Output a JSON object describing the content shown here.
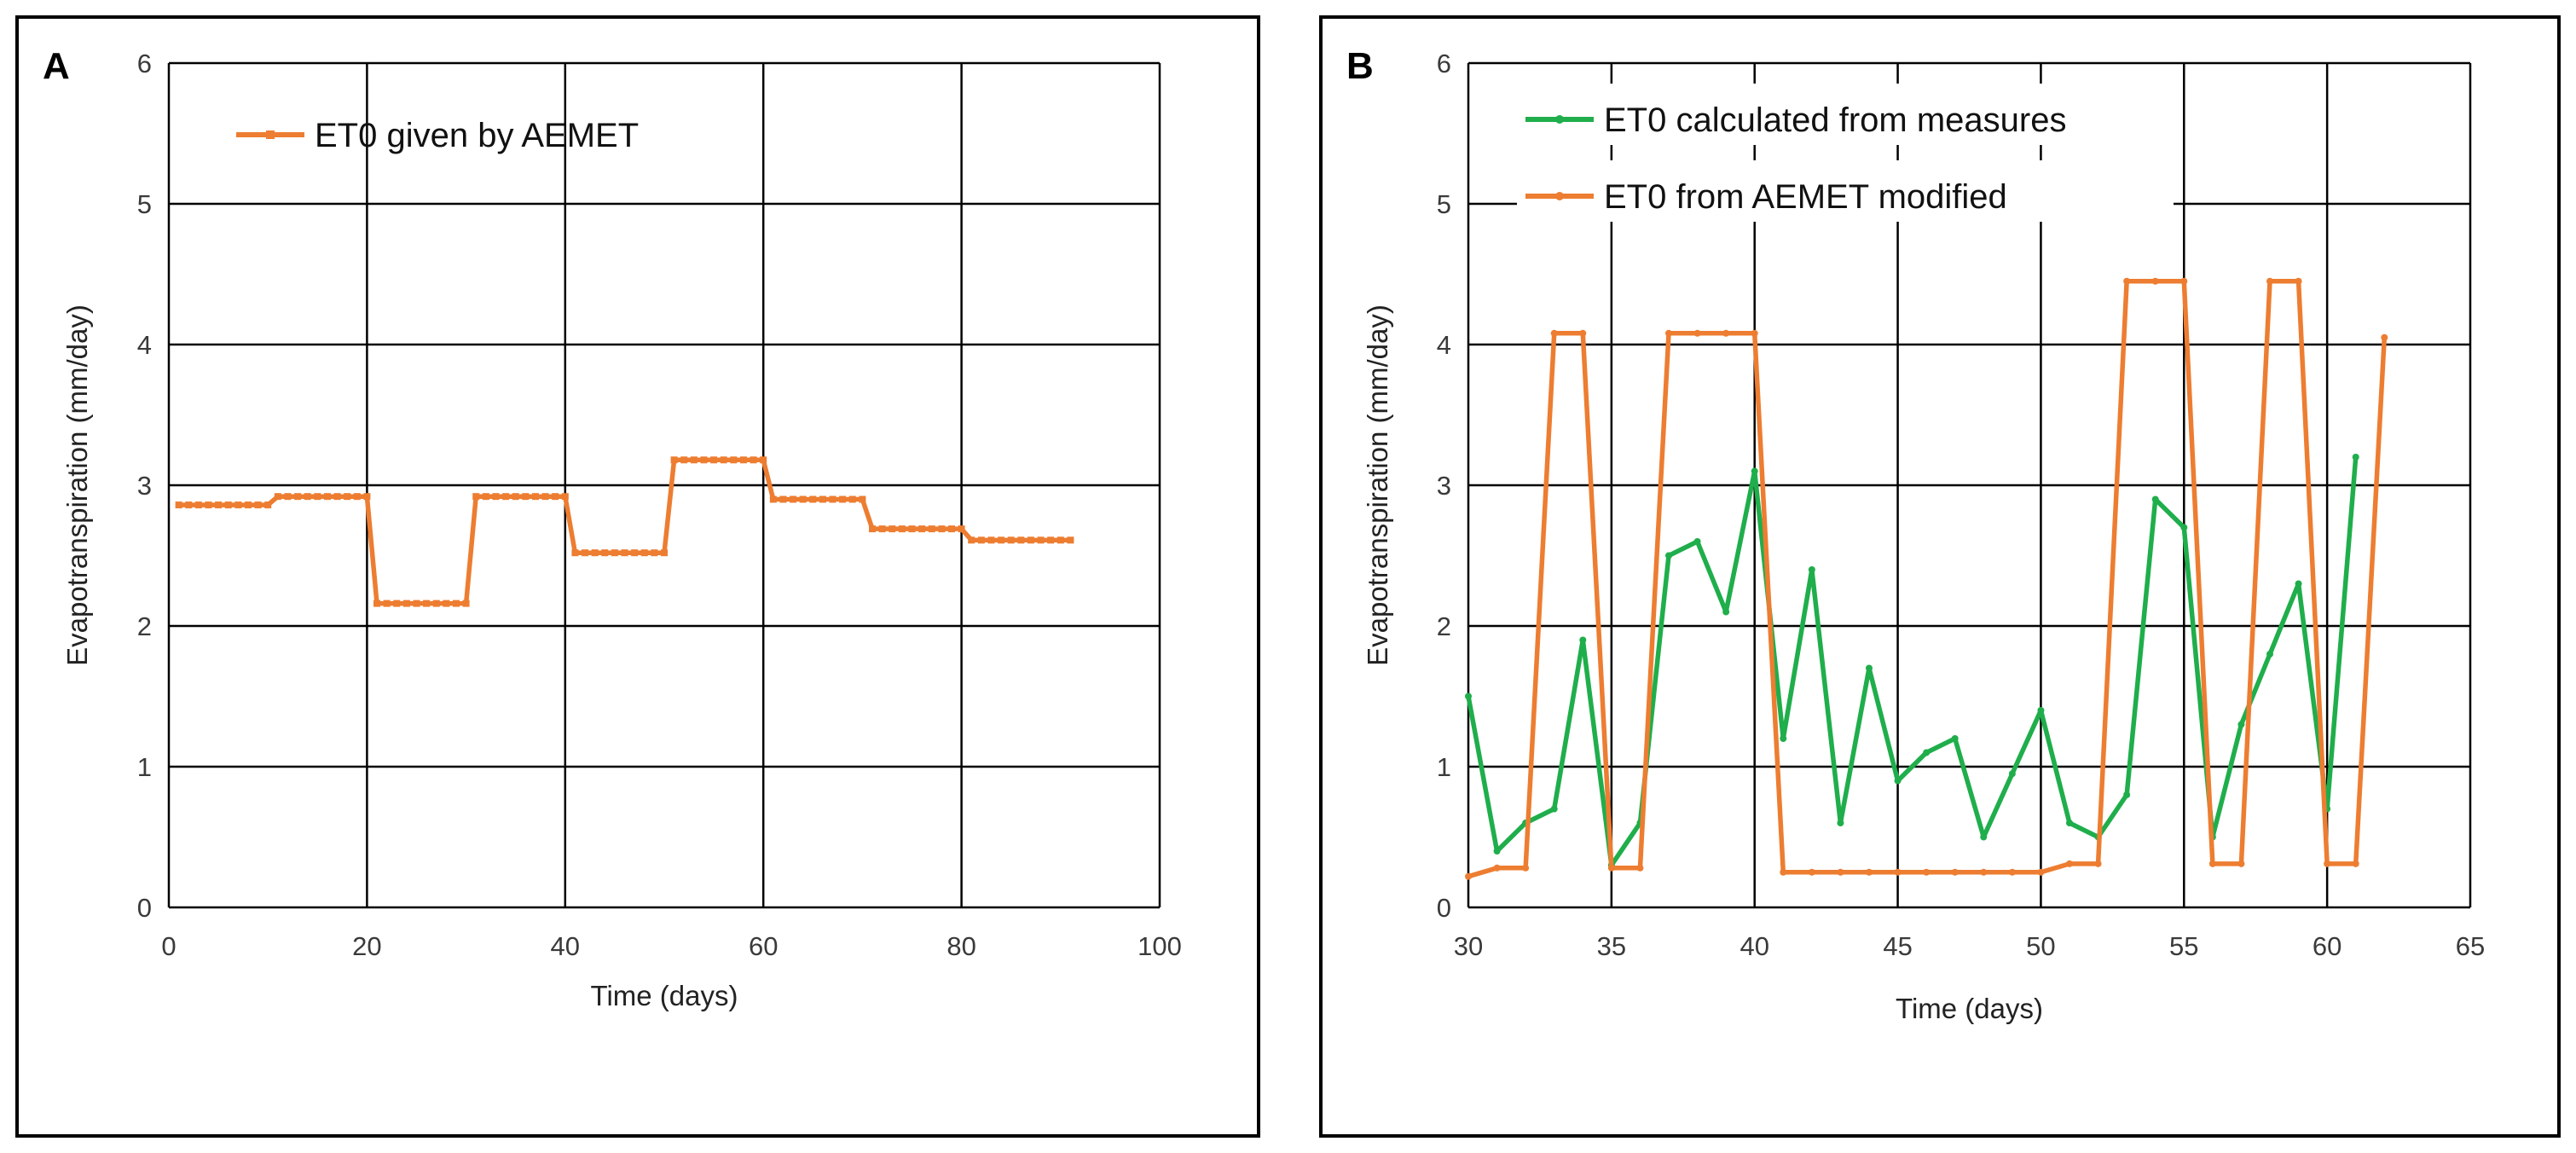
{
  "chart_data": [
    {
      "panel_label": "A",
      "type": "line",
      "xlabel": "Time (days)",
      "ylabel": "Evapotranspiration (mm/day)",
      "xlim": [
        0,
        100
      ],
      "ylim": [
        0,
        6
      ],
      "xticks": [
        0,
        20,
        40,
        60,
        80,
        100
      ],
      "yticks": [
        0,
        1,
        2,
        3,
        4,
        5,
        6
      ],
      "grid": true,
      "legend_position": "top-left",
      "colors": {
        "orange": "#ED7D31"
      },
      "series": [
        {
          "name": "ET0 given by AEMET",
          "color": "#ED7D31",
          "marker": "square",
          "x": [
            1,
            2,
            3,
            4,
            5,
            6,
            7,
            8,
            9,
            10,
            11,
            12,
            13,
            14,
            15,
            16,
            17,
            18,
            19,
            20,
            21,
            22,
            23,
            24,
            25,
            26,
            27,
            28,
            29,
            30,
            31,
            32,
            33,
            34,
            35,
            36,
            37,
            38,
            39,
            40,
            41,
            42,
            43,
            44,
            45,
            46,
            47,
            48,
            49,
            50,
            51,
            52,
            53,
            54,
            55,
            56,
            57,
            58,
            59,
            60,
            61,
            62,
            63,
            64,
            65,
            66,
            67,
            68,
            69,
            70,
            71,
            72,
            73,
            74,
            75,
            76,
            77,
            78,
            79,
            80,
            81,
            82,
            83,
            84,
            85,
            86,
            87,
            88,
            89,
            90,
            91
          ],
          "y": [
            2.86,
            2.86,
            2.86,
            2.86,
            2.86,
            2.86,
            2.86,
            2.86,
            2.86,
            2.86,
            2.92,
            2.92,
            2.92,
            2.92,
            2.92,
            2.92,
            2.92,
            2.92,
            2.92,
            2.92,
            2.16,
            2.16,
            2.16,
            2.16,
            2.16,
            2.16,
            2.16,
            2.16,
            2.16,
            2.16,
            2.92,
            2.92,
            2.92,
            2.92,
            2.92,
            2.92,
            2.92,
            2.92,
            2.92,
            2.92,
            2.52,
            2.52,
            2.52,
            2.52,
            2.52,
            2.52,
            2.52,
            2.52,
            2.52,
            2.52,
            3.18,
            3.18,
            3.18,
            3.18,
            3.18,
            3.18,
            3.18,
            3.18,
            3.18,
            3.18,
            2.9,
            2.9,
            2.9,
            2.9,
            2.9,
            2.9,
            2.9,
            2.9,
            2.9,
            2.9,
            2.69,
            2.69,
            2.69,
            2.69,
            2.69,
            2.69,
            2.69,
            2.69,
            2.69,
            2.69,
            2.61,
            2.61,
            2.61,
            2.61,
            2.61,
            2.61,
            2.61,
            2.61,
            2.61,
            2.61,
            2.61
          ]
        }
      ]
    },
    {
      "panel_label": "B",
      "type": "line",
      "xlabel": "Time (days)",
      "ylabel": "Evapotranspiration (mm/day)",
      "xlim": [
        30,
        65
      ],
      "ylim": [
        0,
        6
      ],
      "xticks": [
        30,
        35,
        40,
        45,
        50,
        55,
        60,
        65
      ],
      "yticks": [
        0,
        1,
        2,
        3,
        4,
        5,
        6
      ],
      "grid": true,
      "legend_position": "top-left",
      "colors": {
        "green": "#1FAE4B",
        "orange": "#ED7D31"
      },
      "series": [
        {
          "name": "ET0 calculated from measures",
          "color": "#1FAE4B",
          "x": [
            30,
            31,
            32,
            33,
            34,
            35,
            36,
            37,
            38,
            39,
            40,
            41,
            42,
            43,
            44,
            45,
            46,
            47,
            48,
            49,
            50,
            51,
            52,
            53,
            54,
            55,
            56,
            57,
            58,
            59,
            60,
            61
          ],
          "y": [
            1.5,
            0.4,
            0.6,
            0.7,
            1.9,
            0.3,
            0.6,
            2.5,
            2.6,
            2.1,
            3.1,
            1.2,
            2.4,
            0.6,
            1.7,
            0.9,
            1.1,
            1.2,
            0.5,
            0.95,
            1.4,
            0.6,
            0.5,
            0.8,
            2.9,
            2.7,
            0.5,
            1.3,
            1.8,
            2.3,
            0.7,
            3.2
          ]
        },
        {
          "name": "ET0 from AEMET modified",
          "color": "#ED7D31",
          "x": [
            30,
            31,
            32,
            33,
            34,
            35,
            36,
            37,
            38,
            39,
            40,
            41,
            42,
            43,
            44,
            45,
            46,
            47,
            48,
            49,
            50,
            51,
            52,
            53,
            54,
            55,
            56,
            57,
            58,
            59,
            60,
            61,
            62
          ],
          "y": [
            0.22,
            0.28,
            0.28,
            4.08,
            4.08,
            0.28,
            0.28,
            4.08,
            4.08,
            4.08,
            4.08,
            0.25,
            0.25,
            0.25,
            0.25,
            0.25,
            0.25,
            0.25,
            0.25,
            0.25,
            0.25,
            0.31,
            0.31,
            4.45,
            4.45,
            4.45,
            0.31,
            0.31,
            4.45,
            4.45,
            0.31,
            0.31,
            4.05
          ]
        }
      ]
    }
  ]
}
